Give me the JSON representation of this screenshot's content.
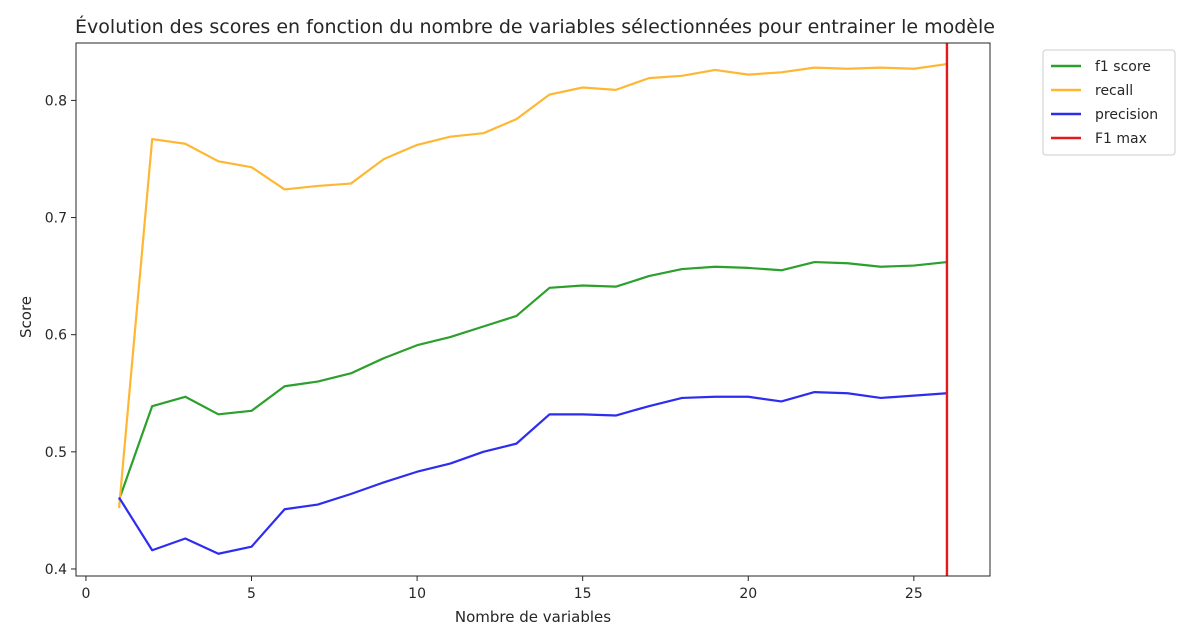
{
  "chart_data": {
    "type": "line",
    "title": "Évolution des scores en fonction du nombre de variables sélectionnées pour entrainer le modèle",
    "xlabel": "Nombre de variables",
    "ylabel": "Score",
    "xlim": [
      -0.3,
      27.3
    ],
    "ylim": [
      0.394,
      0.849
    ],
    "xticks": [
      0,
      5,
      10,
      15,
      20,
      25
    ],
    "xtick_labels": [
      "0",
      "5",
      "10",
      "15",
      "20",
      "25"
    ],
    "yticks": [
      0.4,
      0.5,
      0.6,
      0.7,
      0.8
    ],
    "ytick_labels": [
      "0.4",
      "0.5",
      "0.6",
      "0.7",
      "0.8"
    ],
    "grid": false,
    "legend_position": "outside top-right",
    "x": [
      1,
      2,
      3,
      4,
      5,
      6,
      7,
      8,
      9,
      10,
      11,
      12,
      13,
      14,
      15,
      16,
      17,
      18,
      19,
      20,
      21,
      22,
      23,
      24,
      25,
      26
    ],
    "series": [
      {
        "name": "f1 score",
        "color": "#2ca02c",
        "values": [
          0.459,
          0.539,
          0.547,
          0.532,
          0.535,
          0.556,
          0.56,
          0.567,
          0.58,
          0.591,
          0.598,
          0.607,
          0.616,
          0.64,
          0.642,
          0.641,
          0.65,
          0.656,
          0.658,
          0.657,
          0.655,
          0.662,
          0.661,
          0.658,
          0.659,
          0.662
        ]
      },
      {
        "name": "recall",
        "color": "#ffb733",
        "values": [
          0.452,
          0.767,
          0.763,
          0.748,
          0.743,
          0.724,
          0.727,
          0.729,
          0.75,
          0.762,
          0.769,
          0.772,
          0.784,
          0.805,
          0.811,
          0.809,
          0.819,
          0.821,
          0.826,
          0.822,
          0.824,
          0.828,
          0.827,
          0.828,
          0.827,
          0.831
        ]
      },
      {
        "name": "precision",
        "color": "#2d2df0",
        "values": [
          0.461,
          0.416,
          0.426,
          0.413,
          0.419,
          0.451,
          0.455,
          0.464,
          0.474,
          0.483,
          0.49,
          0.5,
          0.507,
          0.532,
          0.532,
          0.531,
          0.539,
          0.546,
          0.547,
          0.547,
          0.543,
          0.551,
          0.55,
          0.546,
          0.548,
          0.55
        ]
      }
    ],
    "vlines": [
      {
        "name": "F1 max",
        "color": "#e31a1c",
        "x": 26
      }
    ],
    "legend": [
      "f1 score",
      "recall",
      "precision",
      "F1 max"
    ]
  }
}
